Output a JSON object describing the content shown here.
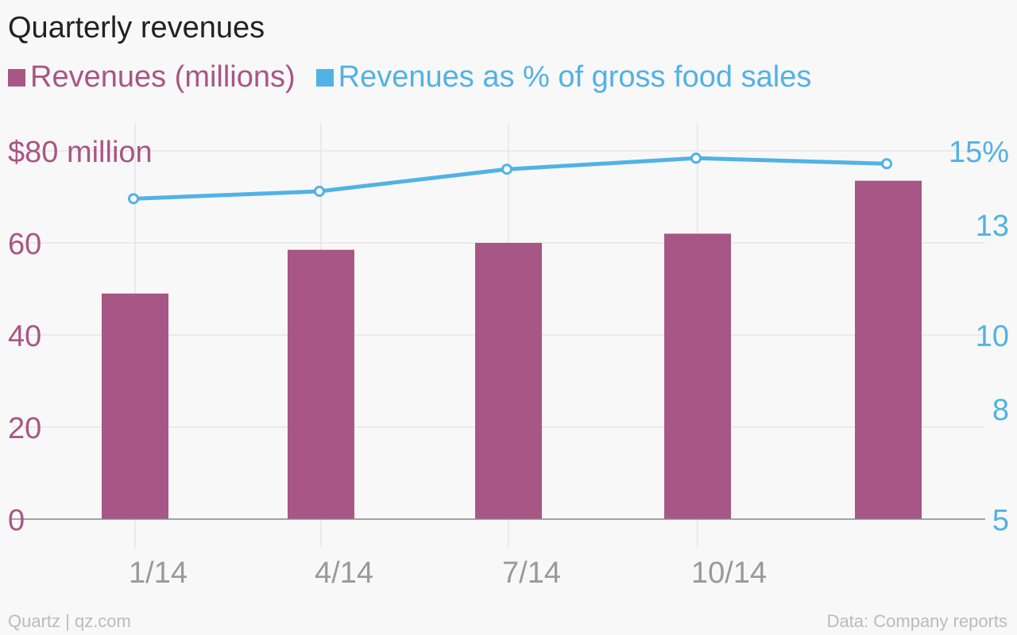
{
  "title": "Quarterly revenues",
  "legend": [
    {
      "label": "Revenues (millions)",
      "color": "#a85686"
    },
    {
      "label": "Revenues as % of gross food sales",
      "color": "#51b2e5"
    }
  ],
  "footer": {
    "source": "Quartz | qz.com",
    "data": "Data: Company reports"
  },
  "chart_data": {
    "type": "bar+line",
    "categories": [
      "1/14",
      "4/14",
      "7/14",
      "10/14",
      ""
    ],
    "series": [
      {
        "name": "Revenues (millions)",
        "type": "bar",
        "axis": "left",
        "color": "#a85686",
        "values": [
          49,
          58.5,
          60,
          62,
          73.5
        ]
      },
      {
        "name": "Revenues as % of gross food sales",
        "type": "line",
        "axis": "right",
        "color": "#51b2e5",
        "values": [
          13.7,
          13.9,
          14.5,
          14.8,
          14.65
        ]
      }
    ],
    "left_axis": {
      "ylim": [
        0,
        80
      ],
      "ticks": [
        0,
        20,
        40,
        60,
        80
      ],
      "tick_labels": [
        "0",
        "20",
        "40",
        "60",
        "$80 million"
      ]
    },
    "right_axis": {
      "ylim": [
        5,
        15
      ],
      "ticks": [
        5,
        8,
        10,
        13,
        15
      ],
      "tick_labels": [
        "5",
        "8",
        "10",
        "13",
        "15%"
      ]
    },
    "x_tick_labels": [
      "1/14",
      "4/14",
      "7/14",
      "10/14"
    ],
    "grid": true
  }
}
